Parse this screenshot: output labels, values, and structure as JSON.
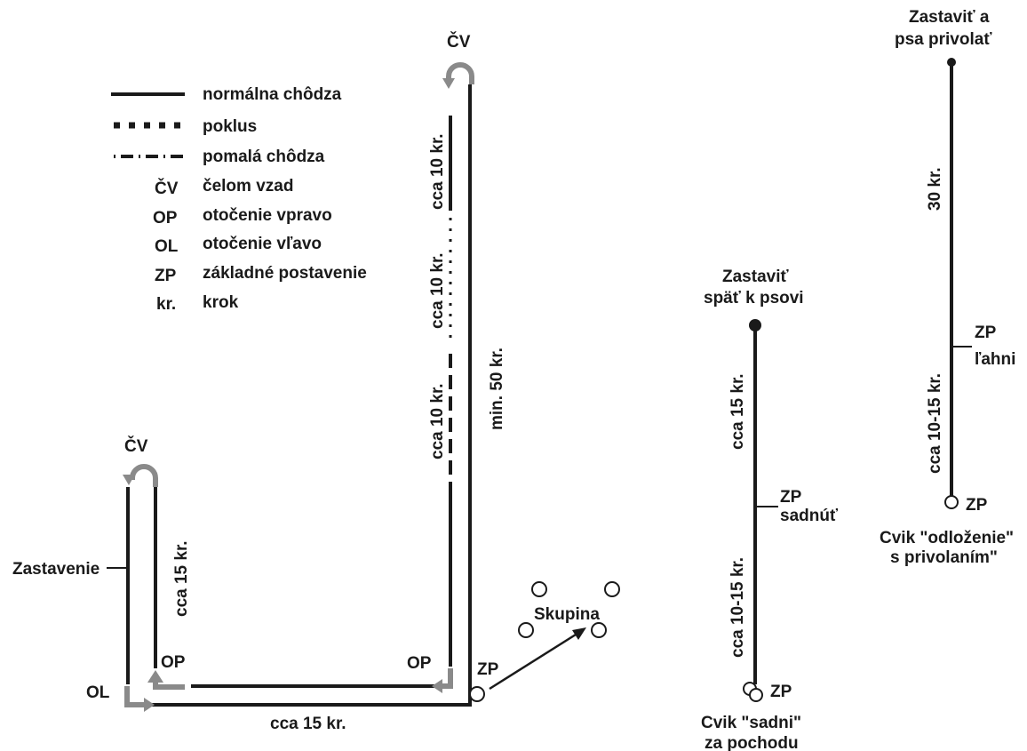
{
  "legend": {
    "items": [
      {
        "symbol": "",
        "text": "normálna chôdza"
      },
      {
        "symbol": "",
        "text": "poklus"
      },
      {
        "symbol": "",
        "text": "pomalá chôdza"
      },
      {
        "symbol": "ČV",
        "text": "čelom vzad"
      },
      {
        "symbol": "OP",
        "text": "otočenie vpravo"
      },
      {
        "symbol": "OL",
        "text": "otočenie vľavo"
      },
      {
        "symbol": "ZP",
        "text": "základné postavenie"
      },
      {
        "symbol": "kr.",
        "text": "krok"
      }
    ]
  },
  "course": {
    "cv_right": "ČV",
    "cv_left": "ČV",
    "seg_top": "cca 10 kr.",
    "seg_mid": "cca 10 kr.",
    "seg_low": "cca 10 kr.",
    "min50": "min. 50 kr.",
    "op_right": "OP",
    "op_left": "OP",
    "ol": "OL",
    "zastavenie": "Zastavenie",
    "left_15": "cca 15 kr.",
    "bottom_15": "cca 15 kr.",
    "zp": "ZP",
    "skupina": "Skupina"
  },
  "sadni": {
    "stop_line1": "Zastaviť",
    "stop_line2": "späť k psovi",
    "upper": "cca 15 kr.",
    "lower": "cca 10-15 kr.",
    "zp_mid": "ZP",
    "sadnut": "sadnúť",
    "zp_bottom": "ZP",
    "caption1": "Cvik \"sadni\"",
    "caption2": "za pochodu"
  },
  "odlozenie": {
    "stop_line1": "Zastaviť a",
    "stop_line2": "psa privolať",
    "upper": "30 kr.",
    "lower": "cca 10-15 kr.",
    "zp_mid": "ZP",
    "lahni": "ľahni",
    "zp_bottom": "ZP",
    "caption1": "Cvik \"odloženie\"",
    "caption2": "s privolaním\""
  }
}
